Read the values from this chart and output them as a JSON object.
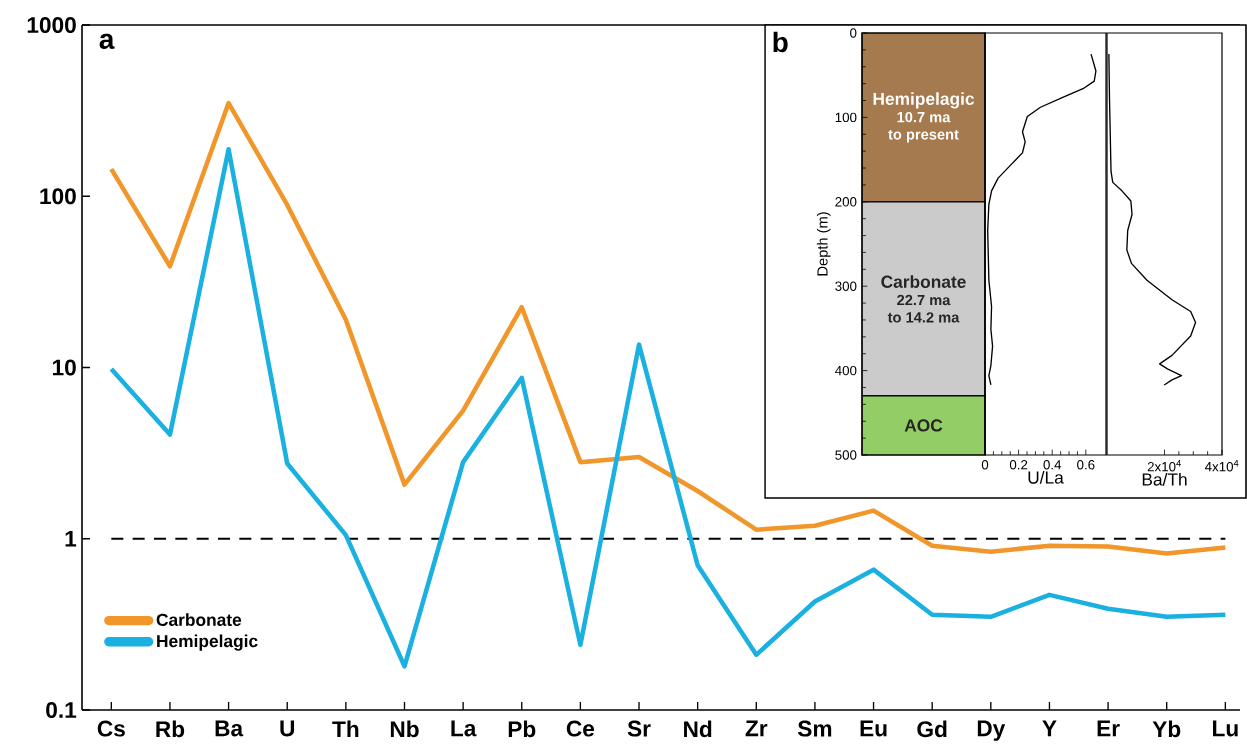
{
  "chart_data": [
    {
      "type": "line",
      "annotations": [
        "a"
      ],
      "categories": [
        "Cs",
        "Rb",
        "Ba",
        "U",
        "Th",
        "Nb",
        "La",
        "Pb",
        "Ce",
        "Sr",
        "Nd",
        "Zr",
        "Sm",
        "Eu",
        "Gd",
        "Dy",
        "Y",
        "Er",
        "Yb",
        "Lu"
      ],
      "series": [
        {
          "name": "Carbonate",
          "color": "#f0962a",
          "values": [
            144,
            39,
            350,
            89,
            19,
            2.07,
            5.6,
            22.5,
            2.8,
            3.0,
            1.9,
            1.13,
            1.19,
            1.46,
            0.91,
            0.84,
            0.91,
            0.9,
            0.82,
            0.89
          ]
        },
        {
          "name": "Hemipelagic",
          "color": "#1ab0e0",
          "values": [
            9.8,
            4.06,
            188,
            2.75,
            1.05,
            0.18,
            2.8,
            8.7,
            0.24,
            13.6,
            0.7,
            0.21,
            0.43,
            0.66,
            0.36,
            0.35,
            0.47,
            0.39,
            0.35,
            0.36
          ]
        }
      ],
      "log": "y",
      "ylim": [
        0.1,
        1000
      ],
      "yticks": [
        0.1,
        1,
        10,
        100,
        1000
      ],
      "legend": "bottom left",
      "line_style": "solid",
      "ref_lines": [
        {
          "axis": "y",
          "value": 1,
          "color": "#000000",
          "line_style": "dashed"
        }
      ]
    },
    {
      "type": "bar",
      "stacked": true,
      "categories": [
        null
      ],
      "annotations": [
        "b",
        "10.7 ma",
        "to present",
        "22.7 ma",
        "to 14.2 ma"
      ],
      "ylabel": "Depth (m)",
      "ylim": [
        500,
        0
      ],
      "yticks": [
        0,
        100,
        200,
        300,
        400,
        500
      ],
      "series": [
        {
          "name": "Hemipelagic",
          "color": "#a57a4e",
          "values": [
            200
          ]
        },
        {
          "name": "Carbonate",
          "color": "#cbcbcb",
          "values": [
            230
          ]
        },
        {
          "name": "AOC",
          "color": "#93cd66",
          "values": [
            70
          ]
        }
      ]
    },
    {
      "type": "line",
      "xlabel": "U/La",
      "xlim": [
        0,
        0.72
      ],
      "xticks": [
        0,
        0.2,
        0.4,
        0.6
      ],
      "ylim": [
        500,
        0
      ],
      "tick_labels": "x",
      "series": [
        {
          "color": "#000000",
          "x": [
            0.631,
            0.66,
            0.65,
            0.583,
            0.466,
            0.33,
            0.252,
            0.223,
            0.239,
            0.223,
            0.155,
            0.078,
            0.039,
            0.023,
            0.016,
            0.023,
            0.039,
            0.035,
            0.045,
            0.035,
            0.023,
            0.035
          ],
          "values": [
            25,
            45,
            57,
            66,
            76,
            88,
            99,
            117,
            129,
            142,
            156,
            172,
            187,
            203,
            234,
            293,
            324,
            351,
            371,
            394,
            406,
            417
          ]
        }
      ]
    },
    {
      "type": "line",
      "xlabel": "Ba/Th",
      "xlim": [
        0,
        40000
      ],
      "xticks": [
        {
          "value": 20000,
          "label": "2x10$^{4}$"
        },
        {
          "value": 40000,
          "label": "4x10$^{4}$"
        }
      ],
      "ylim": [
        500,
        0
      ],
      "tick_labels": "x",
      "series": [
        {
          "color": "#000000",
          "x": [
            650,
            870,
            1400,
            2000,
            5200,
            8300,
            8700,
            7200,
            6900,
            8500,
            13900,
            22600,
            29100,
            30800,
            29100,
            22600,
            18300,
            21000,
            25900,
            22600,
            19900
          ],
          "values": [
            25,
            78,
            164,
            177,
            187,
            199,
            215,
            234,
            257,
            273,
            293,
            316,
            330,
            343,
            359,
            382,
            392,
            398,
            406,
            411,
            417
          ]
        }
      ]
    }
  ]
}
